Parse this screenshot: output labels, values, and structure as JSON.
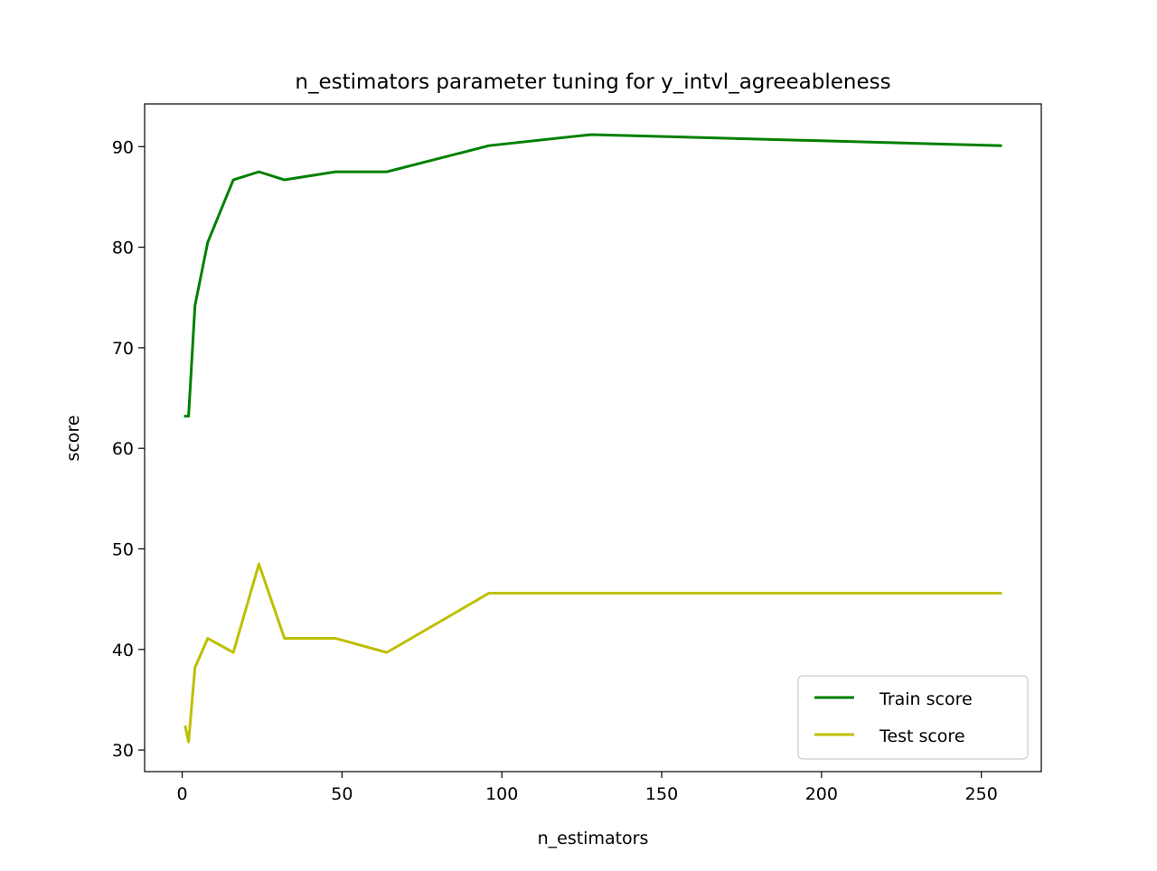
{
  "chart_data": {
    "type": "line",
    "title": "n_estimators parameter tuning for y_intvl_agreeableness",
    "xlabel": "n_estimators",
    "ylabel": "score",
    "xlim": [
      -11.75,
      268.75
    ],
    "ylim": [
      27.85,
      94.25
    ],
    "x_ticks": [
      0,
      50,
      100,
      150,
      200,
      250
    ],
    "y_ticks": [
      30,
      40,
      50,
      60,
      70,
      80,
      90
    ],
    "x_tick_labels": [
      "0",
      "50",
      "100",
      "150",
      "200",
      "250"
    ],
    "y_tick_labels": [
      "30",
      "40",
      "50",
      "60",
      "70",
      "80",
      "90"
    ],
    "grid": false,
    "legend_position": "lower right",
    "x": [
      1,
      2,
      4,
      8,
      16,
      24,
      32,
      48,
      64,
      96,
      128,
      256
    ],
    "series": [
      {
        "name": "Train score",
        "color": "#008000",
        "values": [
          63.2,
          63.2,
          74.2,
          80.5,
          86.7,
          87.5,
          86.7,
          87.5,
          87.5,
          90.1,
          91.2,
          90.1
        ]
      },
      {
        "name": "Test score",
        "color": "#bfbf00",
        "values": [
          32.3,
          30.8,
          38.2,
          41.1,
          39.7,
          48.5,
          41.1,
          41.1,
          39.7,
          45.6,
          45.6,
          45.6
        ]
      }
    ]
  }
}
